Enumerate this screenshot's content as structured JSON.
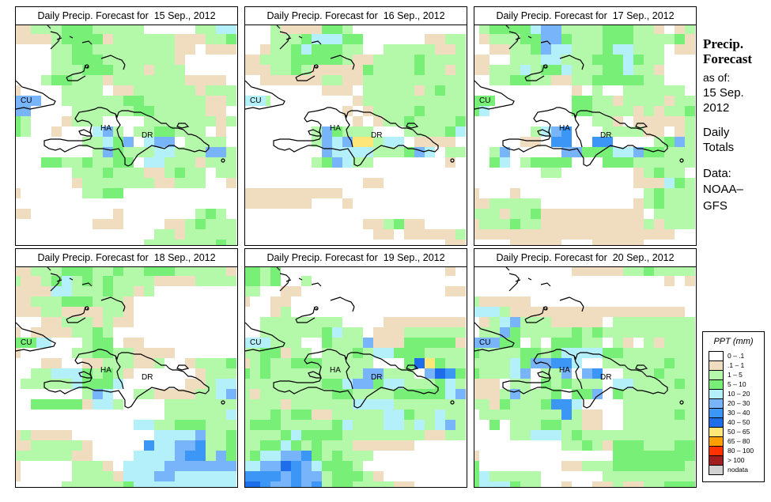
{
  "legend": {
    "title": "PPT (mm)",
    "items": [
      {
        "label": "0 – .1",
        "color": "#ffffff"
      },
      {
        "label": ".1 – 1",
        "color": "#f0dcbe"
      },
      {
        "label": "1 – 5",
        "color": "#b4f8aa"
      },
      {
        "label": "5 – 10",
        "color": "#78f078"
      },
      {
        "label": "10 – 20",
        "color": "#b4f0fa"
      },
      {
        "label": "20 – 30",
        "color": "#78b4fa"
      },
      {
        "label": "30 – 40",
        "color": "#3c96f5"
      },
      {
        "label": "40 – 50",
        "color": "#1e6eeb"
      },
      {
        "label": "50 – 65",
        "color": "#ffe678"
      },
      {
        "label": "65 – 80",
        "color": "#ffa000"
      },
      {
        "label": "80 – 100",
        "color": "#ff3200"
      },
      {
        "label": "> 100",
        "color": "#a01e1e"
      },
      {
        "label": "nodata",
        "color": "#d2d2d2"
      }
    ]
  },
  "side": {
    "title_line1": "Precip.",
    "title_line2": "Forecast",
    "asof": "as of:",
    "date_line1": "15 Sep.",
    "date_line2": "2012",
    "totals_line1": "Daily",
    "totals_line2": "Totals",
    "data_line1": "Data:",
    "data_line2": "NOAA–",
    "data_line3": "GFS"
  },
  "labels": {
    "cu": "CU",
    "ha": "HA",
    "dr": "DR"
  },
  "panels": [
    {
      "title": "Daily Precip. Forecast for  15 Sep., 2012",
      "cu_color": "#78b4fa",
      "grid": [
        "1122233322222000002244",
        "1111233331222222111223",
        "0000223322222222110111",
        "0000223332222222100000",
        "0000222333222122200000",
        "0002332221222222211110",
        "1000022220112222221222",
        "5550022222233222222112",
        "5500002222223322222110",
        "3200012220000222222212",
        "3200100045202233222010",
        "0000000224350455022220",
        "0000000025322244222552",
        "0003322322330442221222",
        "0000002223222112322022",
        "0000001222222211222001",
        "1000000223300000000000",
        "0000000000000000000000",
        "1100000000100000002320",
        "0000000011100001123222",
        "0000000000000022122222",
        "0000000000000222222232"
      ]
    },
    {
      "title": "Daily Precip. Forecast for  16 Sep., 2012",
      "cu_color": "#b4f0fa",
      "grid": [
        "0002111133200000000000",
        "0002223444330000001122",
        "0012234333220022222112",
        "1122233333211222232222",
        "1112232111113222232212",
        "0011111122112222222222",
        "0000000011102222212322",
        "4320000000012222222222",
        "0000000000101222232222",
        "0000000000010122322223",
        "0000000253222000222234",
        "0000000254588244011110",
        "0000000054444222354022",
        "0000000235422000000010",
        "0000000000000000000000",
        "0000000000001100000000",
        "1111111111000000000000",
        "1111111000100000000000",
        "0000000000000000000000",
        "0000000000001123110000",
        "0000000000000110111112",
        "0000000000000000000011"
      ]
    },
    {
      "title": "Daily Precip. Forecast for  17 Sep., 2012",
      "cu_color": "#78f078",
      "grid": [
        "0233334552222333221012",
        "0122233553222333222231",
        "0011223544222344222011",
        "1100222442223334322000",
        "1122242334222334221000",
        "0022332211223333322000",
        "0000000000102002222220",
        "3400000000332212222122",
        "3400000000332222121223",
        "0000000000002210111112",
        "0000002456000222211012",
        "0000011066006600002352",
        "0025000005533344533222",
        "0034023333000333222222",
        "0000000220000000123220",
        "0000000000000000111432",
        "1000100000000000023222",
        "1122222000000000123222",
        "2221223111111111102222",
        "1222322111111111121222",
        "1111111111111111111100",
        "0000111110001111100000"
      ]
    },
    {
      "title": "Daily Precip. Forecast for  18 Sep., 2012",
      "cu_color": "#78f078",
      "grid": [
        "1122233322322333222221",
        "2112342323222211112222",
        "1111442223221200000000",
        "1122233322210000000000",
        "1112211112210000000000",
        "0001122212110000000000",
        "1011112232000000000000",
        "3244000233011000000000",
        "1000002233221111000000",
        "0001100112221120012223",
        "0022444323210000001222",
        "0222224333400000011244",
        "0000000254002211112245",
        "0033333144200002222222",
        "0000000000000002222224",
        "0000000000004422333222",
        "1211110000000044445223",
        "1122222100000644556223",
        "2222221100004444566253",
        "1000002221044445555555",
        "1000002222144455444444",
        "0000022222234444444444"
      ]
    },
    {
      "title": "Daily Precip. Forecast for  19 Sep., 2012",
      "cu_color": "#b4f0fa",
      "grid": [
        "3323000000000000000010",
        "3323002000000000000000",
        "2200110000000000000011",
        "1001100000000000000000",
        "0001200000000000000000",
        "0022222222000011111111",
        "0022222234220111222222",
        "2342220032225111333331",
        "2233122022232443332222",
        "1232233322222000378322",
        "3232222222225522205763",
        "2222222233455344222342",
        "2122222223322223333345",
        "2222122222244442222222",
        "2223233112222244322422",
        "2333222223422244242452",
        "2222343333222222221122",
        "2233432322211111100000",
        "2344556323222000000000",
        "4455765433320000000000",
        "6666565523332100000000",
        "7765565623322221100000"
      ]
    },
    {
      "title": "Daily Precip. Forecast for  20 Sep., 2012",
      "cu_color": "#78b4fa",
      "grid": [
        "0000000000111112232222",
        "0000000000000000000101",
        "0000000000000000000000",
        "2111110000000000000000",
        "4442111111111111111110",
        "0124522211111022222222",
        "0225322222323222222222",
        "5553302033322021021222",
        "3222233234444332222222",
        "2222435566400222222322",
        "3222450225056002223222",
        "1110220323222044222232",
        "1112522230335032222222",
        "2213222366400002222222",
        "0222222226211002222232",
        "0030222332211002222222",
        "0000224442322222222222",
        "0000000002232133322233",
        "1000000000000033333333",
        "3000000001122233333332",
        "3422222000000222222222",
        "3444322001001121122333"
      ]
    }
  ]
}
